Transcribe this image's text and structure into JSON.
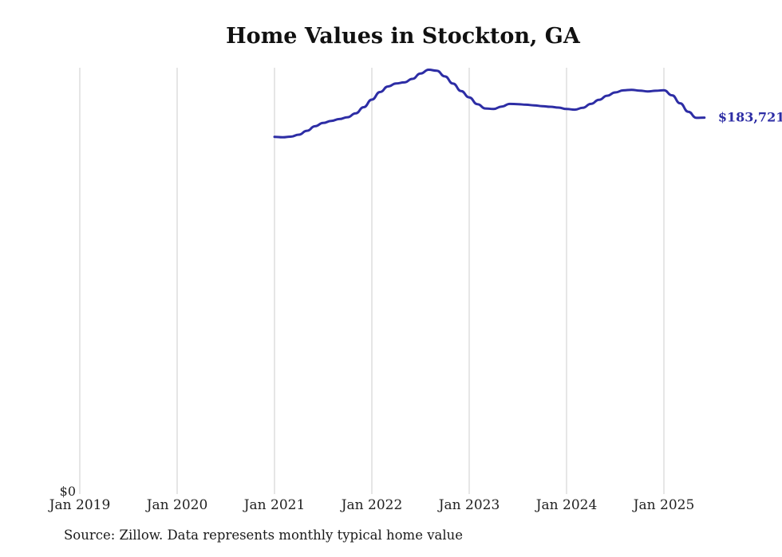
{
  "chart_data": {
    "type": "line",
    "title": "Home Values in Stockton, GA",
    "source_note": "Source: Zillow. Data represents monthly typical home value",
    "end_label": "$183,721",
    "line_color": "#2d2da5",
    "grid_color": "#cccccc",
    "tick_label_color": "#222222",
    "x_ticks": [
      "Jan 2019",
      "Jan 2020",
      "Jan 2021",
      "Jan 2022",
      "Jan 2023",
      "Jan 2024",
      "Jan 2025"
    ],
    "y_axis": {
      "zero_label": "$0",
      "ylim": [
        0,
        210000
      ]
    },
    "series": [
      {
        "name": "Monthly typical home value",
        "start_month": "Jan 2021",
        "x_start_tick_index": 2,
        "values": [
          174300,
          174100,
          174400,
          175400,
          177300,
          179500,
          181100,
          182100,
          183000,
          183900,
          185800,
          188800,
          192500,
          196200,
          198900,
          200400,
          200900,
          202600,
          205200,
          207100,
          206600,
          203800,
          200300,
          196700,
          193600,
          190300,
          188200,
          187900,
          189100,
          190400,
          190300,
          190000,
          189700,
          189300,
          189000,
          188600,
          187900,
          187600,
          188500,
          190400,
          192400,
          194400,
          196000,
          197000,
          197300,
          196900,
          196500,
          196800,
          197100,
          194600,
          190700,
          186600,
          183600,
          183721
        ]
      }
    ]
  }
}
